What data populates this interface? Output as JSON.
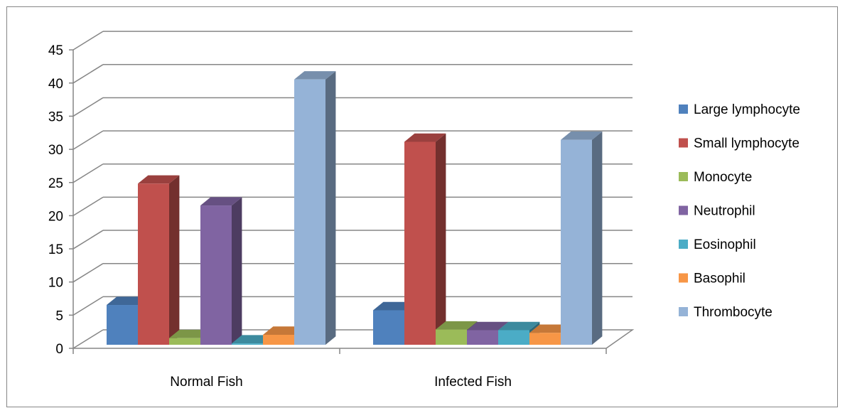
{
  "chart_data": {
    "type": "bar",
    "style": "3d-clustered-column",
    "title": "",
    "xlabel": "",
    "ylabel": "",
    "categories": [
      "Normal Fish",
      "Infected Fish"
    ],
    "ylim": [
      0,
      45
    ],
    "y_ticks": [
      "0",
      "5",
      "10",
      "15",
      "20",
      "25",
      "30",
      "35",
      "40",
      "45"
    ],
    "grid": true,
    "legend_position": "right",
    "series": [
      {
        "name": "Large lymphocyte",
        "values": [
          6,
          5.2
        ],
        "color": "#4F81BD"
      },
      {
        "name": "Small lymphocyte",
        "values": [
          24.3,
          30.6
        ],
        "color": "#C0504D"
      },
      {
        "name": "Monocyte",
        "values": [
          1,
          2.3
        ],
        "color": "#9BBB59"
      },
      {
        "name": "Neutrophil",
        "values": [
          21,
          2.2
        ],
        "color": "#8064A2"
      },
      {
        "name": "Eosinophil",
        "values": [
          0.2,
          2.2
        ],
        "color": "#4BACC6"
      },
      {
        "name": "Basophil",
        "values": [
          1.5,
          1.8
        ],
        "color": "#F79646"
      },
      {
        "name": "Thrombocyte",
        "values": [
          40,
          30.9
        ],
        "color": "#95B3D7"
      }
    ]
  }
}
